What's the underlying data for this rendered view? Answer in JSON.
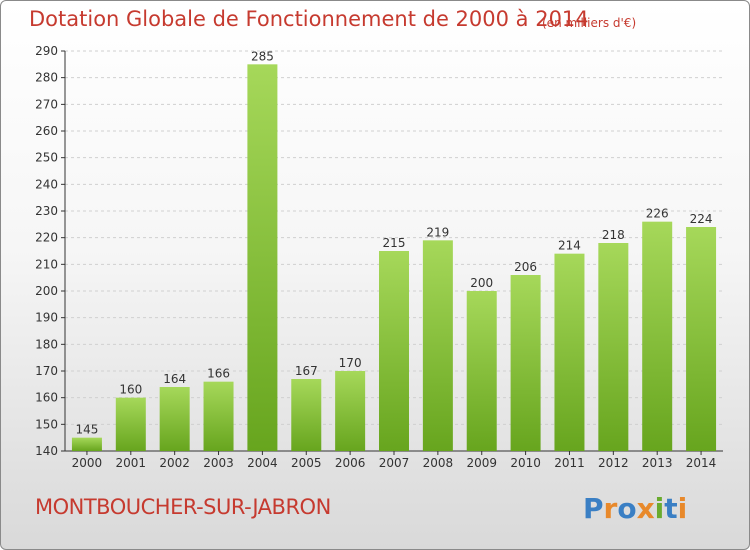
{
  "header": {
    "title": "Dotation Globale de Fonctionnement de 2000 à 2014",
    "subtitle": "(en milliers d'€)"
  },
  "footer": {
    "town": "MONTBOUCHER-SUR-JABRON",
    "logo_text": "Proxiti"
  },
  "colors": {
    "title": "#c63a2f",
    "bar_light": "#a6d85a",
    "bar_dark": "#67a51e",
    "grid": "#d0d0d0",
    "axis": "#333333"
  },
  "chart_data": {
    "type": "bar",
    "categories": [
      "2000",
      "2001",
      "2002",
      "2003",
      "2004",
      "2005",
      "2006",
      "2007",
      "2008",
      "2009",
      "2010",
      "2011",
      "2012",
      "2013",
      "2014"
    ],
    "values": [
      145,
      160,
      164,
      166,
      285,
      167,
      170,
      215,
      219,
      200,
      206,
      214,
      218,
      226,
      224
    ],
    "ylim": [
      140,
      290
    ],
    "yticks": [
      140,
      150,
      160,
      170,
      180,
      190,
      200,
      210,
      220,
      230,
      240,
      250,
      260,
      270,
      280,
      290
    ],
    "grid": true,
    "data_labels": true
  }
}
